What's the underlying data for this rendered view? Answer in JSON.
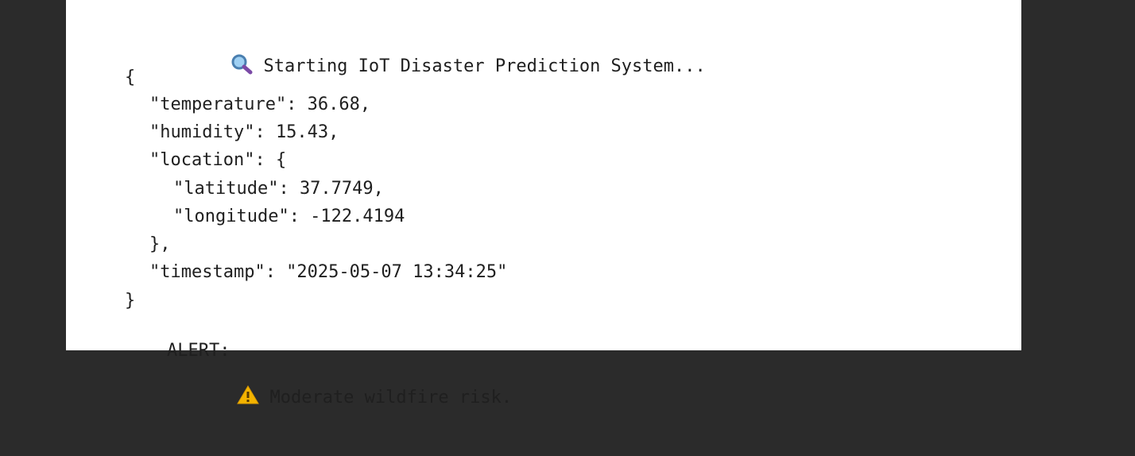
{
  "console": {
    "status_icon": "magnifying-glass-icon",
    "status_text": "Starting IoT Disaster Prediction System...",
    "json_lines": {
      "open_brace": "{",
      "temperature": "\"temperature\": 36.68,",
      "humidity": "\"humidity\": 15.43,",
      "location_open": "\"location\": {",
      "latitude": "\"latitude\": 37.7749,",
      "longitude": "\"longitude\": -122.4194",
      "location_close": "},",
      "timestamp": "\"timestamp\": \"2025-05-07 13:34:25\"",
      "close_brace": "}"
    },
    "alert_label": "ALERT:",
    "alert_icon": "warning-icon",
    "alert_text": "Moderate wildfire risk."
  },
  "colors": {
    "background": "#2b2b2b",
    "panel": "#ffffff",
    "text": "#1f1f1f",
    "warning": "#f4b400",
    "magnifier_lens": "#5aa0d6"
  }
}
